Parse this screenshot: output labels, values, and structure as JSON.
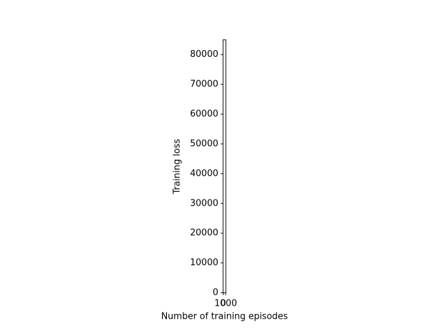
{
  "chart_data": {
    "type": "line",
    "x_label": "Number of training episodes",
    "y_label": "Training loss",
    "xlim": [
      -50,
      1050
    ],
    "xticks": [
      0,
      1000
    ],
    "ylim": [
      0,
      85000
    ],
    "yticks": [
      0,
      10000,
      20000,
      30000,
      40000,
      50000,
      60000,
      70000,
      80000
    ]
  }
}
